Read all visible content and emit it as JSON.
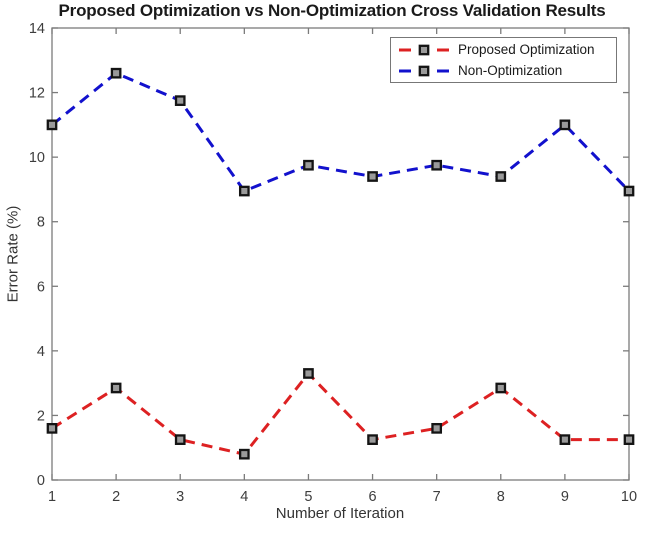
{
  "chart_data": {
    "type": "line",
    "title": "Proposed Optimization vs Non-Optimization Cross Validation Results",
    "xlabel": "Number of Iteration",
    "ylabel": "Error Rate (%)",
    "xlim": [
      1,
      10
    ],
    "ylim": [
      0,
      14
    ],
    "x_ticks": [
      1,
      2,
      3,
      4,
      5,
      6,
      7,
      8,
      9,
      10
    ],
    "y_ticks": [
      0,
      2,
      4,
      6,
      8,
      10,
      12,
      14
    ],
    "grid": false,
    "legend_position": "top-right",
    "x": [
      1,
      2,
      3,
      4,
      5,
      6,
      7,
      8,
      9,
      10
    ],
    "series": [
      {
        "name": "Proposed Optimization",
        "color": "#dd2122",
        "line_style": "dashed",
        "values": [
          1.6,
          2.85,
          1.25,
          0.8,
          3.3,
          1.25,
          1.6,
          2.85,
          1.25,
          1.25
        ]
      },
      {
        "name": "Non-Optimization",
        "color": "#1211cd",
        "line_style": "dashed",
        "values": [
          11.0,
          12.6,
          11.75,
          8.95,
          9.75,
          9.4,
          9.75,
          9.4,
          11.0,
          8.95
        ]
      }
    ],
    "marker": {
      "shape": "square",
      "fill": "#9a9a9a",
      "edge": "#141414"
    }
  }
}
